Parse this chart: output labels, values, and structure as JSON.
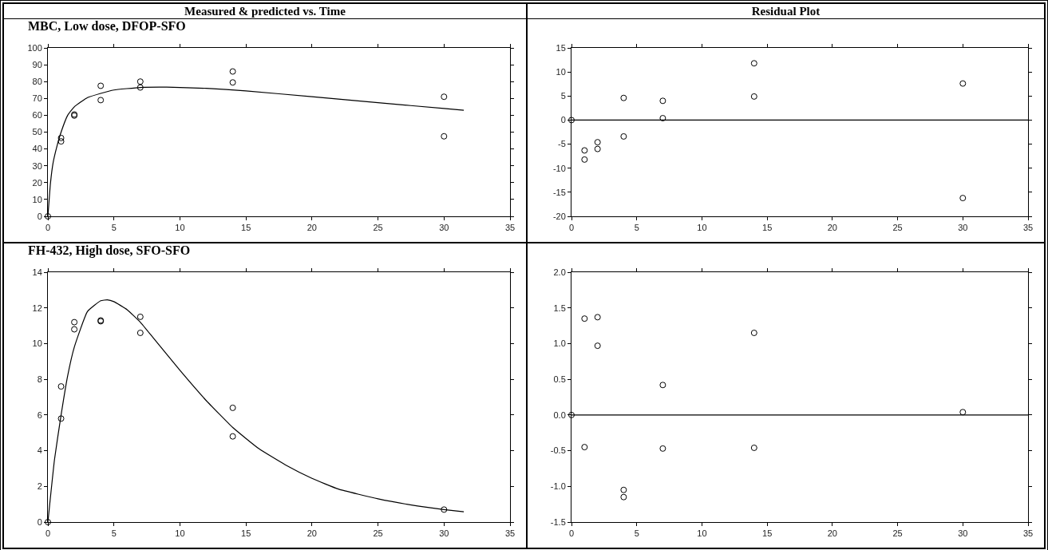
{
  "chart_data": [
    {
      "type": "scatter",
      "title": "Measured & predicted vs. Time",
      "subtitle": "MBC, Low dose, DFOP-SFO",
      "xlim": [
        0,
        35
      ],
      "xticks": [
        0,
        5,
        10,
        15,
        20,
        25,
        30,
        35
      ],
      "ylim": [
        0,
        100
      ],
      "yticks": [
        0,
        10,
        20,
        30,
        40,
        50,
        60,
        70,
        80,
        90,
        100
      ],
      "grid": false,
      "series": [
        {
          "marker": "circle",
          "color": "#000000",
          "x": [
            0,
            1,
            1,
            2,
            2,
            4,
            4,
            7,
            7,
            14,
            14,
            30,
            30
          ],
          "values": [
            0,
            46.5,
            44.5,
            60.5,
            59.8,
            77.5,
            69,
            80,
            76.5,
            86,
            79.5,
            71,
            47.5
          ]
        },
        {
          "type": "line",
          "marker": "none",
          "color": "#000000",
          "x": [
            0,
            0.2,
            0.4,
            0.7,
            1,
            1.5,
            2,
            3,
            4,
            5,
            7,
            9,
            12,
            15,
            20,
            25,
            30,
            31.5
          ],
          "values": [
            0,
            20,
            32,
            42,
            50,
            60,
            65,
            70.5,
            73,
            75,
            76.5,
            76.7,
            76,
            74.5,
            71,
            67.5,
            64,
            63
          ]
        }
      ]
    },
    {
      "type": "scatter",
      "title": "Residual Plot",
      "xlim": [
        0,
        35
      ],
      "xticks": [
        0,
        5,
        10,
        15,
        20,
        25,
        30,
        35
      ],
      "ylim": [
        -20,
        15
      ],
      "yticks": [
        -20,
        -15,
        -10,
        -5,
        0,
        5,
        10,
        15
      ],
      "grid": false,
      "marker": "circle",
      "ref_lines": [
        {
          "axis": "y",
          "value": 0,
          "color": "#000000"
        }
      ],
      "series": [
        {
          "color": "#000000",
          "x": [
            0,
            1,
            1,
            2,
            2,
            4,
            4,
            7,
            7,
            14,
            14,
            30,
            30
          ],
          "values": [
            0,
            -6.3,
            -8.2,
            -4.6,
            -6,
            4.6,
            -3.4,
            4,
            0.4,
            11.8,
            4.9,
            7.6,
            -16.2
          ]
        }
      ]
    },
    {
      "type": "scatter",
      "subtitle": "FH-432, High dose, SFO-SFO",
      "xlim": [
        0,
        35
      ],
      "xticks": [
        0,
        5,
        10,
        15,
        20,
        25,
        30,
        35
      ],
      "ylim": [
        0,
        14
      ],
      "yticks": [
        0,
        2,
        4,
        6,
        8,
        10,
        12,
        14
      ],
      "grid": false,
      "series": [
        {
          "marker": "circle",
          "color": "#000000",
          "x": [
            0,
            1,
            1,
            2,
            2,
            4,
            4,
            7,
            7,
            14,
            14,
            30
          ],
          "values": [
            0,
            7.6,
            5.8,
            11.2,
            10.8,
            11.3,
            11.25,
            11.5,
            10.6,
            6.4,
            4.8,
            0.7
          ]
        },
        {
          "type": "line",
          "marker": "none",
          "color": "#000000",
          "x": [
            0,
            0.5,
            1,
            1.5,
            2,
            3,
            4,
            4.5,
            5,
            6,
            7,
            8,
            10,
            12,
            14,
            16,
            18,
            20,
            22,
            25,
            28,
            30,
            31.5
          ],
          "values": [
            0,
            3.5,
            6,
            8.2,
            9.8,
            11.8,
            12.4,
            12.45,
            12.35,
            11.9,
            11.2,
            10.3,
            8.5,
            6.8,
            5.3,
            4.1,
            3.2,
            2.45,
            1.85,
            1.3,
            0.9,
            0.7,
            0.58
          ]
        }
      ]
    },
    {
      "type": "scatter",
      "xlim": [
        0,
        35
      ],
      "xticks": [
        0,
        5,
        10,
        15,
        20,
        25,
        30,
        35
      ],
      "ylim": [
        -1.5,
        2
      ],
      "yticks": [
        {
          "value": -1.5,
          "label": "-1.5"
        },
        {
          "value": -1,
          "label": "-1.0"
        },
        {
          "value": -0.5,
          "label": "-0.5"
        },
        {
          "value": 0,
          "label": "0.0"
        },
        {
          "value": 0.5,
          "label": "0.5"
        },
        {
          "value": 1,
          "label": "1.0"
        },
        {
          "value": 1.5,
          "label": "1.5"
        },
        {
          "value": 2,
          "label": "2.0"
        }
      ],
      "grid": false,
      "marker": "circle",
      "ref_lines": [
        {
          "axis": "y",
          "value": 0,
          "color": "#000000"
        }
      ],
      "series": [
        {
          "color": "#000000",
          "x": [
            0,
            1,
            1,
            2,
            2,
            4,
            4,
            7,
            7,
            14,
            14,
            30
          ],
          "values": [
            0,
            1.35,
            -0.45,
            1.37,
            0.97,
            -1.05,
            -1.15,
            0.42,
            -0.47,
            1.15,
            -0.46,
            0.04
          ]
        }
      ]
    }
  ]
}
